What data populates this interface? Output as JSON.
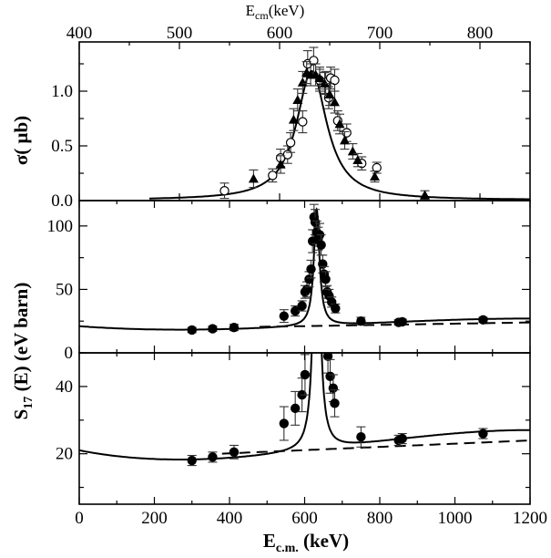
{
  "chart_data": [
    {
      "type": "scatter",
      "panel": "top",
      "xlabel": "E_cm(keV)",
      "xlabel_main": "E",
      "xlabel_sub": "cm",
      "xlabel_unit": "(keV)",
      "xlim": [
        400,
        850
      ],
      "xticks": [
        400,
        500,
        600,
        700,
        800
      ],
      "ylabel": "σ( μb)",
      "ylim": [
        0,
        1.45
      ],
      "yticks": [
        0.0,
        0.5,
        1.0
      ],
      "ytick_labels": [
        "0.0",
        "0.5",
        "1.0"
      ],
      "series": [
        {
          "name": "open circles",
          "marker": "open-circle",
          "points": [
            {
              "x": 545,
              "y": 0.09,
              "err": 0.07
            },
            {
              "x": 593,
              "y": 0.23,
              "err": 0.06
            },
            {
              "x": 601,
              "y": 0.39,
              "err": 0.08
            },
            {
              "x": 608,
              "y": 0.42,
              "err": 0.08
            },
            {
              "x": 611,
              "y": 0.53,
              "err": 0.09
            },
            {
              "x": 623,
              "y": 0.72,
              "err": 0.1
            },
            {
              "x": 628,
              "y": 1.25,
              "err": 0.12
            },
            {
              "x": 634,
              "y": 1.28,
              "err": 0.12
            },
            {
              "x": 640,
              "y": 1.1,
              "err": 0.1
            },
            {
              "x": 646,
              "y": 1.08,
              "err": 0.1
            },
            {
              "x": 649,
              "y": 0.94,
              "err": 0.1
            },
            {
              "x": 651,
              "y": 1.12,
              "err": 0.1
            },
            {
              "x": 655,
              "y": 1.1,
              "err": 0.1
            },
            {
              "x": 658,
              "y": 0.73,
              "err": 0.09
            },
            {
              "x": 667,
              "y": 0.62,
              "err": 0.08
            },
            {
              "x": 682,
              "y": 0.34,
              "err": 0.06
            },
            {
              "x": 697,
              "y": 0.3,
              "err": 0.05
            }
          ]
        },
        {
          "name": "filled triangles",
          "marker": "filled-triangle",
          "points": [
            {
              "x": 574,
              "y": 0.2,
              "err": 0.08
            },
            {
              "x": 601,
              "y": 0.33,
              "err": 0.08
            },
            {
              "x": 614,
              "y": 0.74,
              "err": 0.1
            },
            {
              "x": 618,
              "y": 0.92,
              "err": 0.1
            },
            {
              "x": 623,
              "y": 1.08,
              "err": 0.1
            },
            {
              "x": 627,
              "y": 1.17,
              "err": 0.1
            },
            {
              "x": 631,
              "y": 1.15,
              "err": 0.1
            },
            {
              "x": 636,
              "y": 1.15,
              "err": 0.1
            },
            {
              "x": 640,
              "y": 1.12,
              "err": 0.1
            },
            {
              "x": 645,
              "y": 1.07,
              "err": 0.1
            },
            {
              "x": 650,
              "y": 0.97,
              "err": 0.1
            },
            {
              "x": 655,
              "y": 0.9,
              "err": 0.1
            },
            {
              "x": 660,
              "y": 0.7,
              "err": 0.09
            },
            {
              "x": 665,
              "y": 0.55,
              "err": 0.08
            },
            {
              "x": 673,
              "y": 0.45,
              "err": 0.07
            },
            {
              "x": 678,
              "y": 0.37,
              "err": 0.06
            },
            {
              "x": 695,
              "y": 0.22,
              "err": 0.05
            },
            {
              "x": 745,
              "y": 0.05,
              "err": 0.04
            }
          ]
        }
      ]
    },
    {
      "type": "scatter",
      "panel": "middle",
      "xlim": [
        0,
        1200
      ],
      "ylabel_shared": "S17 (E) (eV barn)",
      "ylabel_main": "S",
      "ylabel_sub": "17",
      "ylabel_rest": " (E) (eV barn)",
      "ylim": [
        0,
        120
      ],
      "yticks": [
        0,
        50,
        100
      ],
      "ytick_labels": [
        "0",
        "50",
        "100"
      ],
      "series": [
        {
          "name": "filled circles",
          "marker": "filled-circle",
          "points": [
            {
              "x": 300,
              "y": 18,
              "err": 2
            },
            {
              "x": 355,
              "y": 19,
              "err": 2
            },
            {
              "x": 412,
              "y": 20,
              "err": 2.5
            },
            {
              "x": 545,
              "y": 29,
              "err": 5
            },
            {
              "x": 575,
              "y": 33,
              "err": 4
            },
            {
              "x": 593,
              "y": 37,
              "err": 4
            },
            {
              "x": 601,
              "y": 48,
              "err": 5
            },
            {
              "x": 606,
              "y": 50,
              "err": 6
            },
            {
              "x": 612,
              "y": 58,
              "err": 6
            },
            {
              "x": 617,
              "y": 66,
              "err": 7
            },
            {
              "x": 621,
              "y": 88,
              "err": 9
            },
            {
              "x": 625,
              "y": 107,
              "err": 10
            },
            {
              "x": 628,
              "y": 103,
              "err": 10
            },
            {
              "x": 632,
              "y": 95,
              "err": 9
            },
            {
              "x": 636,
              "y": 90,
              "err": 9
            },
            {
              "x": 640,
              "y": 93,
              "err": 9
            },
            {
              "x": 644,
              "y": 85,
              "err": 8
            },
            {
              "x": 648,
              "y": 70,
              "err": 7
            },
            {
              "x": 652,
              "y": 62,
              "err": 6
            },
            {
              "x": 656,
              "y": 58,
              "err": 6
            },
            {
              "x": 660,
              "y": 48,
              "err": 5
            },
            {
              "x": 665,
              "y": 45,
              "err": 5
            },
            {
              "x": 672,
              "y": 40,
              "err": 4
            },
            {
              "x": 682,
              "y": 35,
              "err": 3.5
            },
            {
              "x": 750,
              "y": 25,
              "err": 3
            },
            {
              "x": 850,
              "y": 24,
              "err": 2
            },
            {
              "x": 860,
              "y": 24.5,
              "err": 2
            },
            {
              "x": 1075,
              "y": 26,
              "err": 2
            }
          ]
        }
      ]
    },
    {
      "type": "scatter",
      "panel": "bottom",
      "xlabel": "E_c.m. (keV)",
      "xlabel_main": "E",
      "xlabel_sub": "c.m.",
      "xlabel_unit": " (keV)",
      "xlim": [
        0,
        1200
      ],
      "xticks": [
        0,
        200,
        400,
        600,
        800,
        1000,
        1200
      ],
      "xtick_labels": [
        "0",
        "200",
        "400",
        "600",
        "800",
        "1000",
        "1200"
      ],
      "ylim": [
        5,
        50
      ],
      "yticks": [
        20,
        40
      ],
      "ytick_labels": [
        "20",
        "40"
      ],
      "series": [
        {
          "name": "filled circles",
          "marker": "filled-circle",
          "points": [
            {
              "x": 300,
              "y": 18,
              "err": 1.5
            },
            {
              "x": 355,
              "y": 19,
              "err": 1.5
            },
            {
              "x": 412,
              "y": 20.5,
              "err": 2
            },
            {
              "x": 545,
              "y": 29,
              "err": 5
            },
            {
              "x": 575,
              "y": 33.5,
              "err": 5
            },
            {
              "x": 593,
              "y": 37.5,
              "err": 5
            },
            {
              "x": 601,
              "y": 43.5,
              "err": 6
            },
            {
              "x": 662,
              "y": 49,
              "err": 5
            },
            {
              "x": 668,
              "y": 43,
              "err": 5
            },
            {
              "x": 676,
              "y": 39.5,
              "err": 4
            },
            {
              "x": 680,
              "y": 35,
              "err": 4
            },
            {
              "x": 750,
              "y": 25,
              "err": 3
            },
            {
              "x": 850,
              "y": 24,
              "err": 1.5
            },
            {
              "x": 860,
              "y": 24.5,
              "err": 1.5
            },
            {
              "x": 1075,
              "y": 26,
              "err": 1.5
            }
          ]
        }
      ]
    }
  ]
}
